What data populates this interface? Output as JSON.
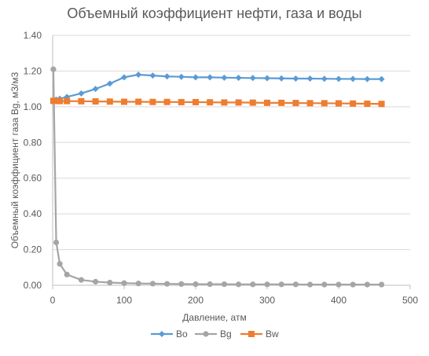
{
  "chart_data": {
    "type": "line",
    "title": "Объемный коэффициент нефти, газа и воды",
    "xlabel": "Давление, атм",
    "ylabel": "Объемный коэффициент газа Bg, м3/м3",
    "xlim": [
      0,
      500
    ],
    "ylim": [
      0,
      1.4
    ],
    "xticks": [
      0,
      100,
      200,
      300,
      400,
      500
    ],
    "yticks": [
      0,
      0.2,
      0.4,
      0.6,
      0.8,
      1.0,
      1.2,
      1.4
    ],
    "xtick_labels": [
      "0",
      "100",
      "200",
      "300",
      "400",
      "500"
    ],
    "ytick_labels": [
      "0.00",
      "0.20",
      "0.40",
      "0.60",
      "0.80",
      "1.00",
      "1.20",
      "1.40"
    ],
    "grid": "horizontal",
    "legend": "bottom",
    "series": [
      {
        "name": "Bo",
        "color": "#5B9BD5",
        "marker": "diamond",
        "x": [
          1,
          5,
          10,
          20,
          40,
          60,
          80,
          100,
          120,
          140,
          160,
          180,
          200,
          220,
          240,
          260,
          280,
          300,
          320,
          340,
          360,
          380,
          400,
          420,
          440,
          460
        ],
        "y": [
          1.035,
          1.04,
          1.045,
          1.055,
          1.075,
          1.1,
          1.13,
          1.165,
          1.18,
          1.175,
          1.17,
          1.168,
          1.165,
          1.165,
          1.163,
          1.162,
          1.161,
          1.16,
          1.159,
          1.158,
          1.158,
          1.157,
          1.156,
          1.156,
          1.155,
          1.155
        ]
      },
      {
        "name": "Bg",
        "color": "#A5A5A5",
        "marker": "circle",
        "x": [
          1,
          5,
          10,
          20,
          40,
          60,
          80,
          100,
          120,
          140,
          160,
          180,
          200,
          220,
          240,
          260,
          280,
          300,
          320,
          340,
          360,
          380,
          400,
          420,
          440,
          460
        ],
        "y": [
          1.21,
          0.24,
          0.12,
          0.06,
          0.03,
          0.02,
          0.015,
          0.012,
          0.01,
          0.009,
          0.008,
          0.007,
          0.006,
          0.006,
          0.006,
          0.005,
          0.005,
          0.005,
          0.005,
          0.005,
          0.004,
          0.004,
          0.004,
          0.004,
          0.004,
          0.004
        ]
      },
      {
        "name": "Bw",
        "color": "#ED7D31",
        "marker": "square",
        "x": [
          1,
          5,
          10,
          20,
          40,
          60,
          80,
          100,
          120,
          140,
          160,
          180,
          200,
          220,
          240,
          260,
          280,
          300,
          320,
          340,
          360,
          380,
          400,
          420,
          440,
          460
        ],
        "y": [
          1.033,
          1.033,
          1.032,
          1.032,
          1.031,
          1.03,
          1.029,
          1.028,
          1.028,
          1.027,
          1.027,
          1.026,
          1.026,
          1.025,
          1.024,
          1.024,
          1.023,
          1.022,
          1.022,
          1.021,
          1.02,
          1.02,
          1.019,
          1.018,
          1.017,
          1.016
        ]
      }
    ]
  }
}
